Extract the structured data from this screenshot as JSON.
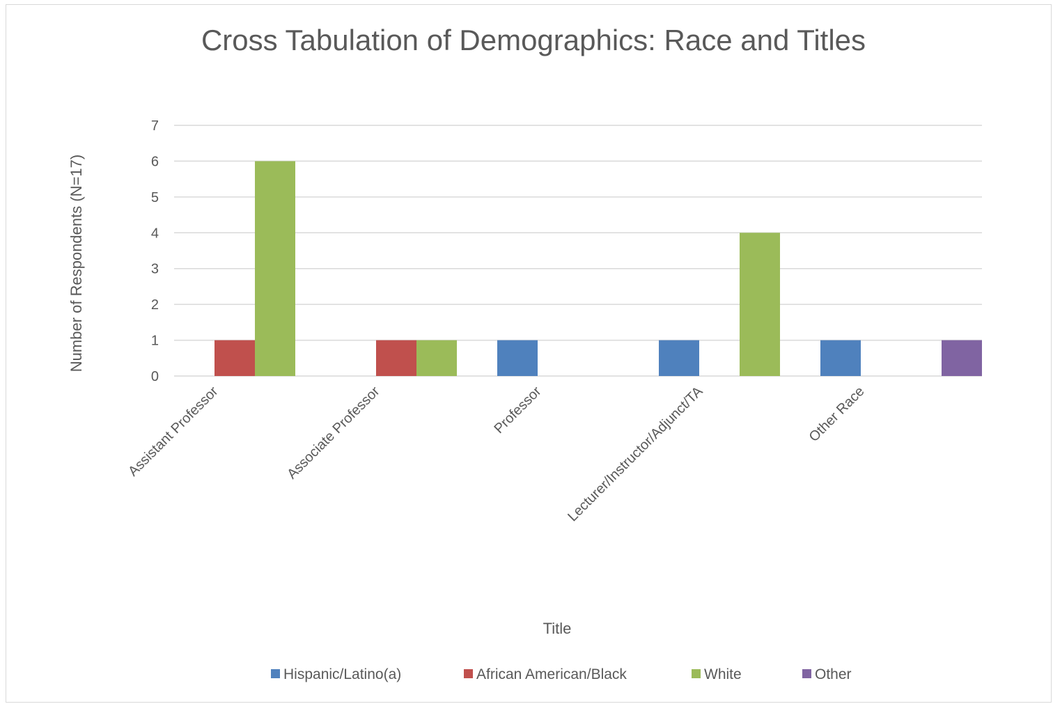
{
  "chart_data": {
    "type": "bar",
    "title": "Cross Tabulation of Demographics: Race and Titles",
    "xlabel": "Title",
    "ylabel": "Number of Respondents (N=17)",
    "ylim": [
      0,
      7
    ],
    "yticks": [
      "0",
      "1",
      "2",
      "3",
      "4",
      "5",
      "6",
      "7"
    ],
    "grid": true,
    "legend_position": "bottom",
    "categories": [
      "Assistant Professor",
      "Associate Professor",
      "Professor",
      "Lecturer/Instructor/Adjunct/TA",
      "Other Race"
    ],
    "series": [
      {
        "name": "Hispanic/Latino(a)",
        "color": "#4f81bd",
        "values": [
          0,
          0,
          1,
          1,
          1
        ]
      },
      {
        "name": "African American/Black",
        "color": "#c0504d",
        "values": [
          1,
          1,
          0,
          0,
          0
        ]
      },
      {
        "name": "White",
        "color": "#9bbb59",
        "values": [
          6,
          1,
          0,
          4,
          0
        ]
      },
      {
        "name": "Other",
        "color": "#8064a2",
        "values": [
          0,
          0,
          0,
          0,
          1
        ]
      }
    ]
  }
}
